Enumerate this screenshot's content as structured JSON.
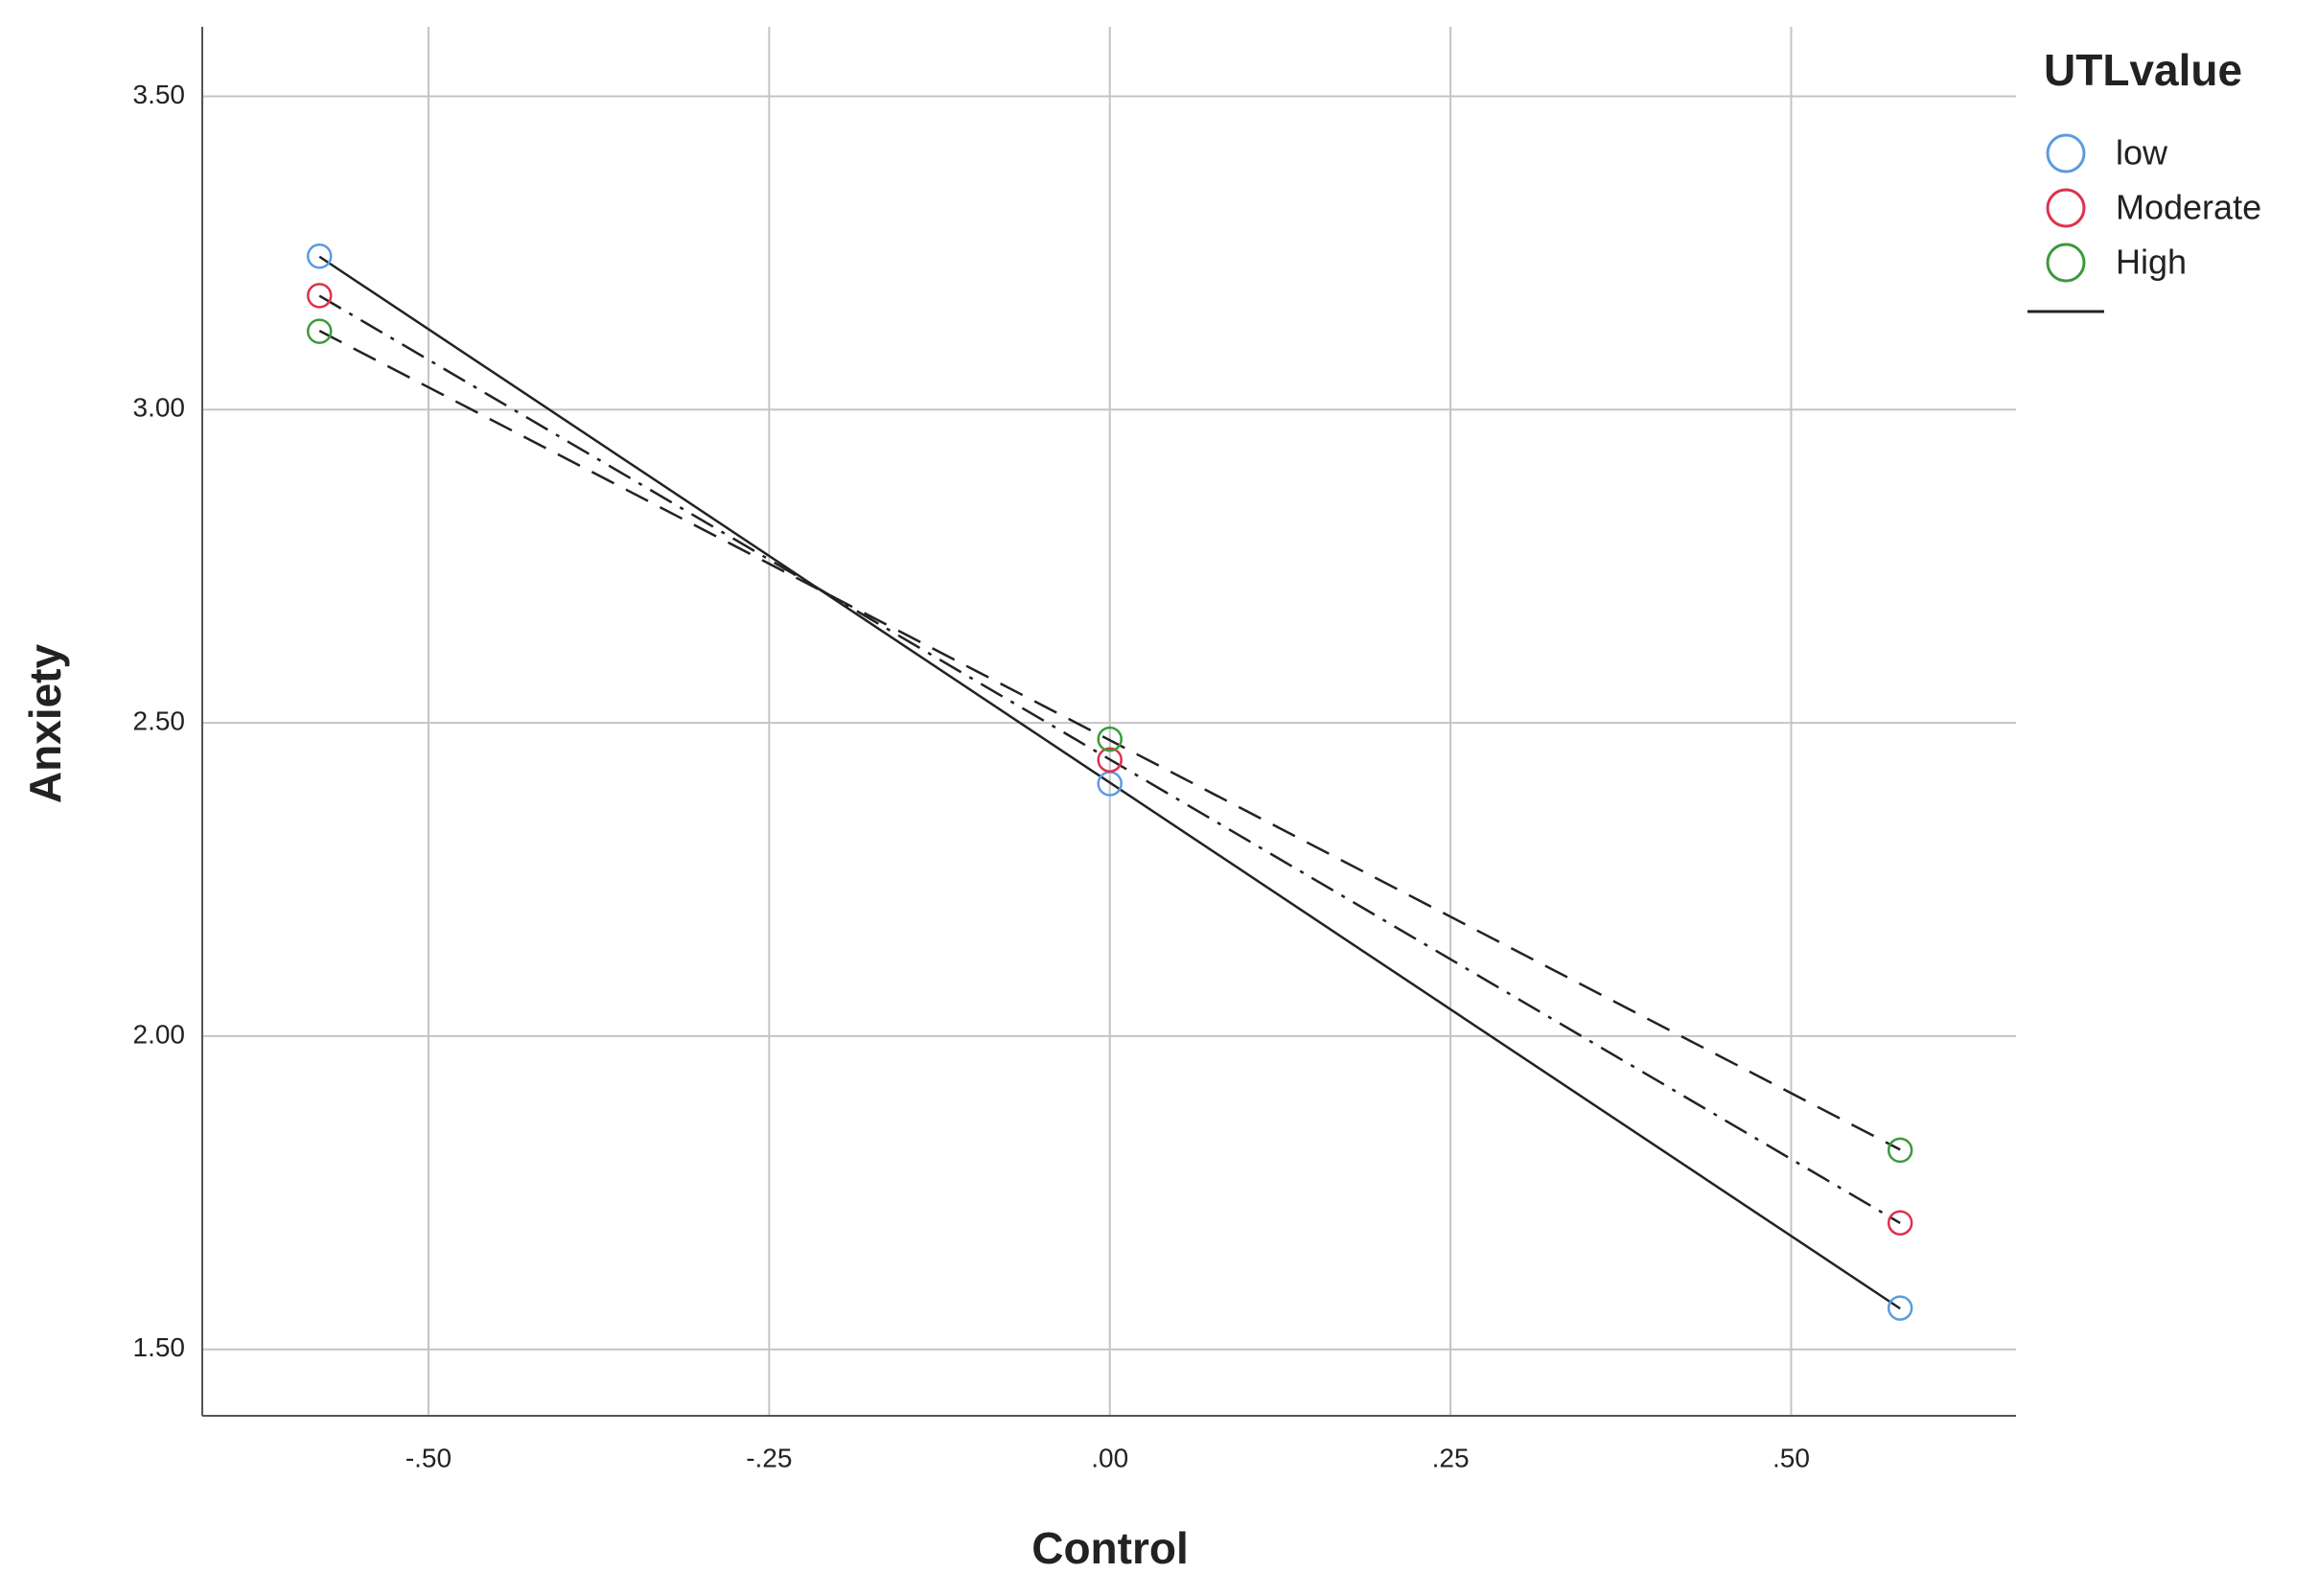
{
  "chart_data": {
    "type": "scatter",
    "x_label": "Control",
    "y_label": "Anxiety",
    "x": [
      -0.58,
      0,
      0.58
    ],
    "series": [
      {
        "name": "low",
        "color": "#5b9be0",
        "line_style": "solid",
        "values": [
          3.245,
          2.403,
          1.566
        ]
      },
      {
        "name": "Moderate",
        "color": "#e0304e",
        "line_style": "dashdot",
        "values": [
          3.182,
          2.441,
          1.702
        ]
      },
      {
        "name": "High",
        "color": "#3c9a3c",
        "line_style": "dash",
        "values": [
          3.125,
          2.474,
          1.818
        ]
      }
    ],
    "legend_title": "UTLvalue",
    "xlim": [
      -0.666,
      0.665
    ],
    "ylim": [
      1.394,
      3.611
    ],
    "xticks": [
      {
        "value": -0.5,
        "label": "-.50"
      },
      {
        "value": -0.25,
        "label": "-.25"
      },
      {
        "value": 0,
        "label": ".00"
      },
      {
        "value": 0.25,
        "label": ".25"
      },
      {
        "value": 0.5,
        "label": ".50"
      }
    ],
    "yticks": [
      {
        "value": 1.5,
        "label": "1.50"
      },
      {
        "value": 2,
        "label": "2.00"
      },
      {
        "value": 2.5,
        "label": "2.50"
      },
      {
        "value": 3,
        "label": "3.00"
      },
      {
        "value": 3.5,
        "label": "3.50"
      }
    ],
    "grid": true,
    "legend": "right",
    "fit_lines": true
  }
}
